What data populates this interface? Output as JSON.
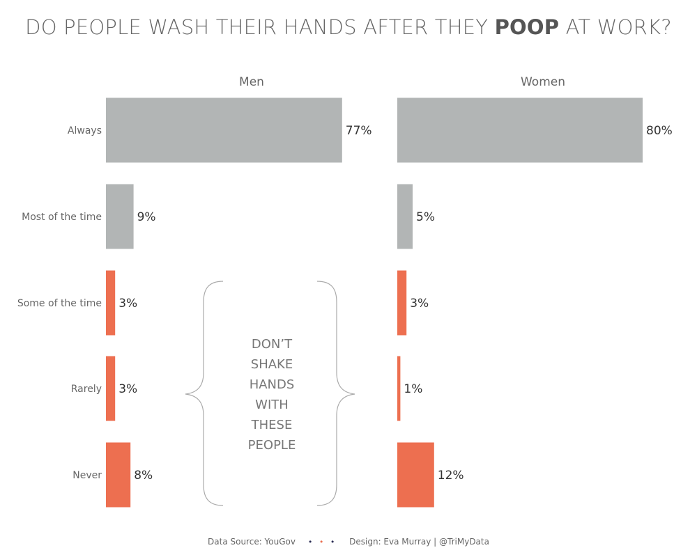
{
  "title": {
    "before": "DO PEOPLE WASH THEIR HANDS AFTER THEY ",
    "emphasis": "POOP",
    "after": " AT WORK?"
  },
  "chart_data": {
    "type": "bar",
    "orientation": "horizontal",
    "categories": [
      "Always",
      "Most of the time",
      "Some of the time",
      "Rarely",
      "Never"
    ],
    "panels": [
      {
        "name": "Men",
        "values": [
          77,
          9,
          3,
          3,
          8
        ],
        "labels": [
          "77%",
          "9%",
          "3%",
          "3%",
          "8%"
        ]
      },
      {
        "name": "Women",
        "values": [
          80,
          5,
          3,
          1,
          12
        ],
        "labels": [
          "80%",
          "5%",
          "3%",
          "1%",
          "12%"
        ]
      }
    ],
    "value_unit": "%",
    "xlim": [
      0,
      80
    ],
    "grid": false,
    "colors": {
      "gray": "#b2b5b5",
      "orange": "#ed6f50"
    },
    "category_colors": [
      "gray",
      "gray",
      "orange",
      "orange",
      "orange"
    ],
    "annotation": {
      "lines": [
        "DON’T",
        "SHAKE",
        "HANDS",
        "WITH",
        "THESE",
        "PEOPLE"
      ],
      "applies_to": [
        "Some of the time",
        "Rarely",
        "Never"
      ]
    }
  },
  "footer": {
    "source": "Data Source: YouGov",
    "dots": [
      "•",
      "•",
      "•"
    ],
    "design": "Design: Eva Murray | @TriMyData"
  }
}
